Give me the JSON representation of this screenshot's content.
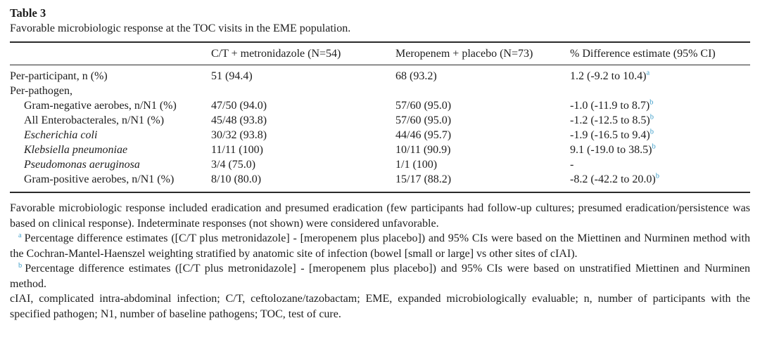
{
  "title": "Table 3",
  "caption": "Favorable microbiologic response at the TOC visits in the EME population.",
  "table": {
    "columns": [
      "",
      "C/T + metronidazole (N=54)",
      "Meropenem + placebo (N=73)",
      "% Difference estimate (95% CI)"
    ],
    "rows": [
      {
        "label": "Per-participant, n (%)",
        "ct": "51 (94.4)",
        "mero": "68 (93.2)",
        "diff": "1.2 (-9.2 to 10.4)",
        "diff_sup": "a"
      },
      {
        "label": "Per-pathogen,",
        "ct": "",
        "mero": "",
        "diff": "",
        "diff_sup": ""
      },
      {
        "label": "Gram-negative aerobes, n/N1 (%)",
        "ct": "47/50 (94.0)",
        "mero": "57/60 (95.0)",
        "diff": "-1.0 (-11.9 to 8.7)",
        "diff_sup": "b"
      },
      {
        "label": "All Enterobacterales, n/N1 (%)",
        "ct": "45/48 (93.8)",
        "mero": "57/60 (95.0)",
        "diff": "-1.2 (-12.5 to 8.5)",
        "diff_sup": "b"
      },
      {
        "label": "Escherichia coli",
        "ct": "30/32 (93.8)",
        "mero": "44/46 (95.7)",
        "diff": "-1.9 (-16.5 to 9.4)",
        "diff_sup": "b"
      },
      {
        "label": "Klebsiella pneumoniae",
        "ct": "11/11 (100)",
        "mero": "10/11 (90.9)",
        "diff": "9.1 (-19.0 to 38.5)",
        "diff_sup": "b"
      },
      {
        "label": "Pseudomonas aeruginosa",
        "ct": "3/4 (75.0)",
        "mero": "1/1 (100)",
        "diff": "-",
        "diff_sup": ""
      },
      {
        "label": "Gram-positive aerobes, n/N1 (%)",
        "ct": "8/10 (80.0)",
        "mero": "15/17 (88.2)",
        "diff": "-8.2 (-42.2 to 20.0)",
        "diff_sup": "b"
      }
    ]
  },
  "footnotes": {
    "general": "Favorable microbiologic response included eradication and presumed eradication (few participants had follow-up cultures; presumed eradication/persistence was based on clinical response). Indeterminate responses (not shown) were considered unfavorable.",
    "a_marker": "a",
    "a_text": "Percentage difference estimates ([C/T plus metronidazole] - [meropenem plus placebo]) and 95% CIs were based on the Miettinen and Nurminen method with the Cochran-Mantel-Haenszel weighting stratified by anatomic site of infection (bowel [small or large] vs other sites of cIAI).",
    "b_marker": "b",
    "b_text": "Percentage difference estimates ([C/T plus metronidazole] - [meropenem plus placebo]) and 95% CIs were based on unstratified Miettinen and Nurminen method.",
    "abbreviations": "cIAI, complicated intra-abdominal infection; C/T, ceftolozane/tazobactam; EME, expanded microbiologically evaluable; n, number of participants with the specified pathogen; N1, number of baseline pathogens; TOC, test of cure."
  },
  "colors": {
    "text": "#1d1d1d",
    "rule": "#2a2a2a",
    "footnote_link": "#3e9ec9",
    "background": "#ffffff"
  }
}
